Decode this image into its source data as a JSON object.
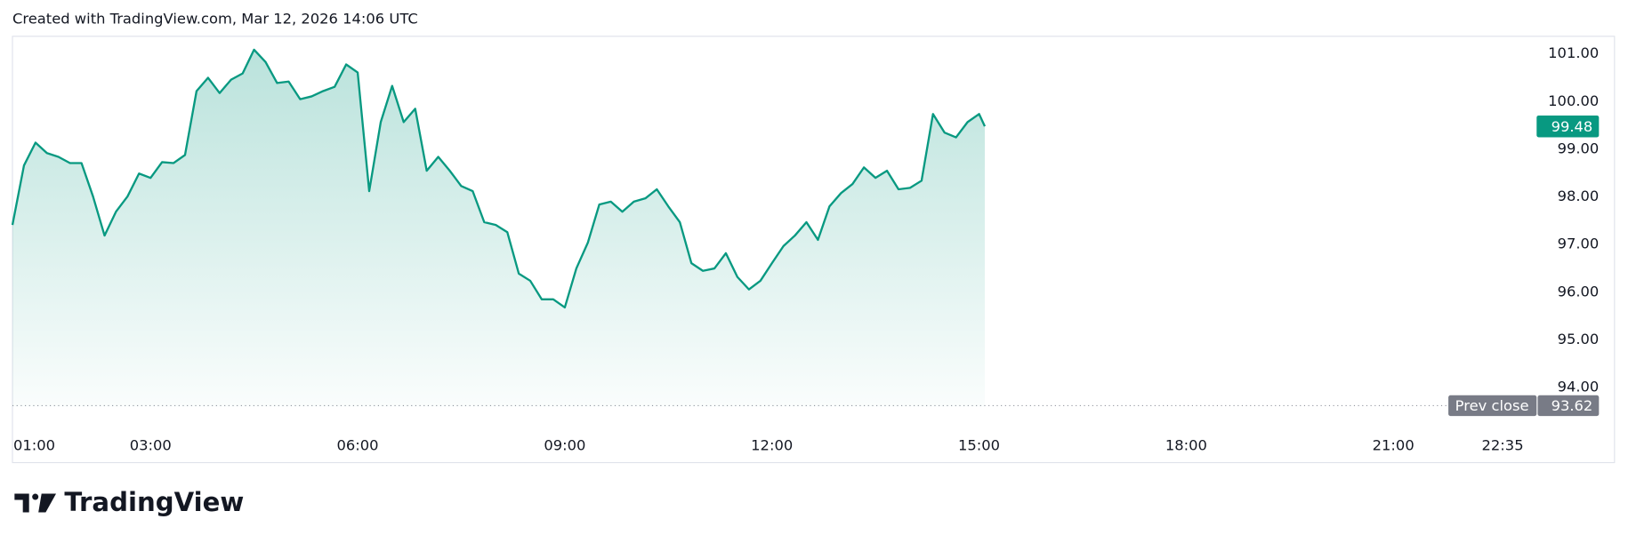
{
  "header": {
    "text": "Created with TradingView.com, Mar 12, 2026 14:06 UTC"
  },
  "logo": {
    "text": "TradingView"
  },
  "chart_data": {
    "type": "area",
    "color": "#089981",
    "grid": false,
    "x": [
      "01:00",
      "01:10",
      "01:20",
      "01:30",
      "01:40",
      "01:50",
      "02:00",
      "02:10",
      "02:20",
      "02:30",
      "02:40",
      "02:50",
      "03:00",
      "03:10",
      "03:20",
      "03:30",
      "03:40",
      "03:50",
      "04:00",
      "04:10",
      "04:20",
      "04:30",
      "04:40",
      "04:50",
      "05:00",
      "05:10",
      "05:20",
      "05:30",
      "05:40",
      "05:50",
      "06:00",
      "06:10",
      "06:20",
      "06:30",
      "06:40",
      "06:50",
      "07:00",
      "07:10",
      "07:20",
      "07:30",
      "07:40",
      "07:50",
      "08:00",
      "08:10",
      "08:20",
      "08:30",
      "08:40",
      "08:50",
      "09:00",
      "09:10",
      "09:20",
      "09:30",
      "09:40",
      "09:50",
      "10:00",
      "10:10",
      "10:20",
      "10:30",
      "10:40",
      "10:50",
      "11:00",
      "11:10",
      "11:20",
      "11:30",
      "11:40",
      "11:50",
      "12:00",
      "12:10",
      "12:20",
      "12:30",
      "12:40",
      "12:50",
      "13:00",
      "13:10",
      "13:20",
      "13:30",
      "13:40",
      "13:50",
      "14:00",
      "14:10",
      "14:20",
      "14:30",
      "14:40",
      "14:50",
      "15:00",
      "15:05"
    ],
    "values": [
      97.41,
      98.66,
      99.14,
      98.92,
      98.84,
      98.71,
      98.71,
      98.01,
      97.19,
      97.69,
      98.01,
      98.49,
      98.4,
      98.73,
      98.71,
      98.88,
      100.22,
      100.5,
      100.18,
      100.46,
      100.59,
      101.09,
      100.83,
      100.39,
      100.42,
      100.05,
      100.11,
      100.22,
      100.31,
      100.78,
      100.61,
      98.12,
      99.57,
      100.33,
      99.57,
      99.85,
      98.55,
      98.84,
      98.55,
      98.23,
      98.12,
      97.47,
      97.41,
      97.26,
      96.39,
      96.24,
      95.85,
      95.85,
      95.68,
      96.5,
      97.04,
      97.84,
      97.9,
      97.69,
      97.9,
      97.97,
      98.16,
      97.8,
      97.47,
      96.61,
      96.45,
      96.5,
      96.82,
      96.32,
      96.06,
      96.24,
      96.61,
      96.97,
      97.19,
      97.47,
      97.1,
      97.8,
      98.08,
      98.27,
      98.62,
      98.4,
      98.55,
      98.16,
      98.19,
      98.34,
      99.74,
      99.35,
      99.25,
      99.57,
      99.74,
      99.48
    ],
    "xlim": [
      "01:00",
      "23:05"
    ],
    "xticks": [
      "01:00",
      "03:00",
      "06:00",
      "09:00",
      "12:00",
      "15:00",
      "18:00",
      "21:00",
      "22:35"
    ],
    "ylim": [
      93.6,
      101.37
    ],
    "yticks": [
      {
        "value": 94,
        "label": "94.00"
      },
      {
        "value": 95,
        "label": "95.00"
      },
      {
        "value": 96,
        "label": "96.00"
      },
      {
        "value": 97,
        "label": "97.00"
      },
      {
        "value": 98,
        "label": "98.00"
      },
      {
        "value": 99,
        "label": "99.00"
      },
      {
        "value": 100,
        "label": "100.00"
      },
      {
        "value": 101,
        "label": "101.00"
      }
    ],
    "prev_close": {
      "label": "Prev close",
      "value": 93.62
    }
  }
}
